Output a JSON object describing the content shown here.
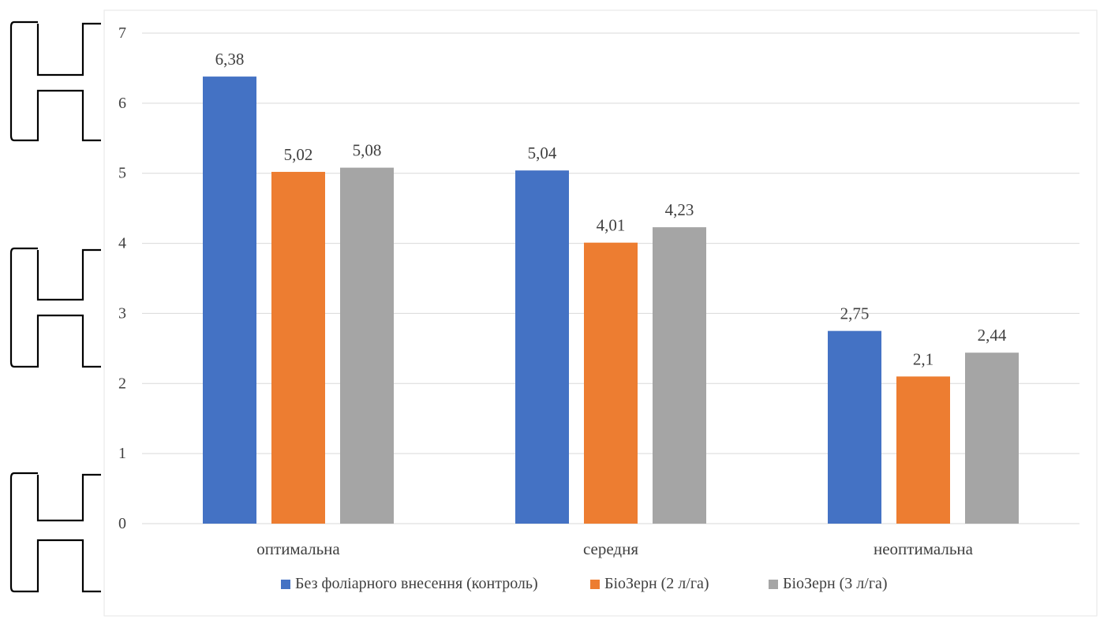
{
  "chart_data": {
    "type": "bar",
    "categories": [
      "оптимальна",
      "середня",
      "неоптимальна"
    ],
    "series": [
      {
        "name": "Без фоліарного внесення (контроль)",
        "color": "#4472C4",
        "values": [
          6.38,
          5.04,
          2.75
        ],
        "labels": [
          "6,38",
          "5,04",
          "2,75"
        ]
      },
      {
        "name": "БіоЗерн (2 л/га)",
        "color": "#ED7D31",
        "values": [
          5.02,
          4.01,
          2.1
        ],
        "labels": [
          "5,02",
          "4,01",
          "2,1"
        ]
      },
      {
        "name": "БіоЗерн (3 л/га)",
        "color": "#A5A5A5",
        "values": [
          5.08,
          4.23,
          2.44
        ],
        "labels": [
          "5,08",
          "4,23",
          "2,44"
        ]
      }
    ],
    "ylim": [
      0,
      7
    ],
    "yticks": [
      "0",
      "1",
      "2",
      "3",
      "4",
      "5",
      "6",
      "7"
    ],
    "grid": true,
    "legend_position": "bottom"
  },
  "colors": {
    "gridline": "#D9D9D9",
    "text": "#404040",
    "bracket": "#000000"
  }
}
